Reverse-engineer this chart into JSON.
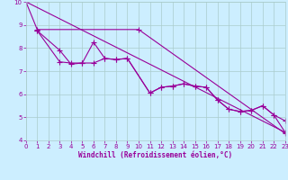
{
  "background_color": "#cceeff",
  "grid_color": "#aacccc",
  "line_color": "#990099",
  "xlabel": "Windchill (Refroidissement éolien,°C)",
  "ylim": [
    4,
    10
  ],
  "xlim": [
    0,
    23
  ],
  "yticks": [
    4,
    5,
    6,
    7,
    8,
    9,
    10
  ],
  "xticks": [
    0,
    1,
    2,
    3,
    4,
    5,
    6,
    7,
    8,
    9,
    10,
    11,
    12,
    13,
    14,
    15,
    16,
    17,
    18,
    19,
    20,
    21,
    22,
    23
  ],
  "series1_x": [
    0,
    1,
    10,
    23
  ],
  "series1_y": [
    10.0,
    8.8,
    8.8,
    4.3
  ],
  "series2_x": [
    1,
    3,
    4,
    5,
    6,
    7,
    8,
    9,
    11,
    12,
    13,
    14,
    15,
    16,
    17,
    18,
    19,
    20,
    21,
    22,
    23
  ],
  "series2_y": [
    8.75,
    7.9,
    7.3,
    7.35,
    8.25,
    7.55,
    7.5,
    7.55,
    6.05,
    6.3,
    6.35,
    6.45,
    6.35,
    6.3,
    5.75,
    5.35,
    5.25,
    5.3,
    5.5,
    5.1,
    4.85
  ],
  "series3_x": [
    1,
    3,
    4,
    5,
    6,
    7,
    8,
    9,
    11,
    12,
    13,
    14,
    15,
    16,
    17,
    18,
    19,
    20,
    21,
    22,
    23
  ],
  "series3_y": [
    8.75,
    7.4,
    7.35,
    7.35,
    7.35,
    7.55,
    7.5,
    7.55,
    6.05,
    6.3,
    6.35,
    6.45,
    6.35,
    6.3,
    5.75,
    5.35,
    5.25,
    5.3,
    5.5,
    5.1,
    4.35
  ],
  "series4_x": [
    0,
    23
  ],
  "series4_y": [
    10.0,
    4.35
  ]
}
